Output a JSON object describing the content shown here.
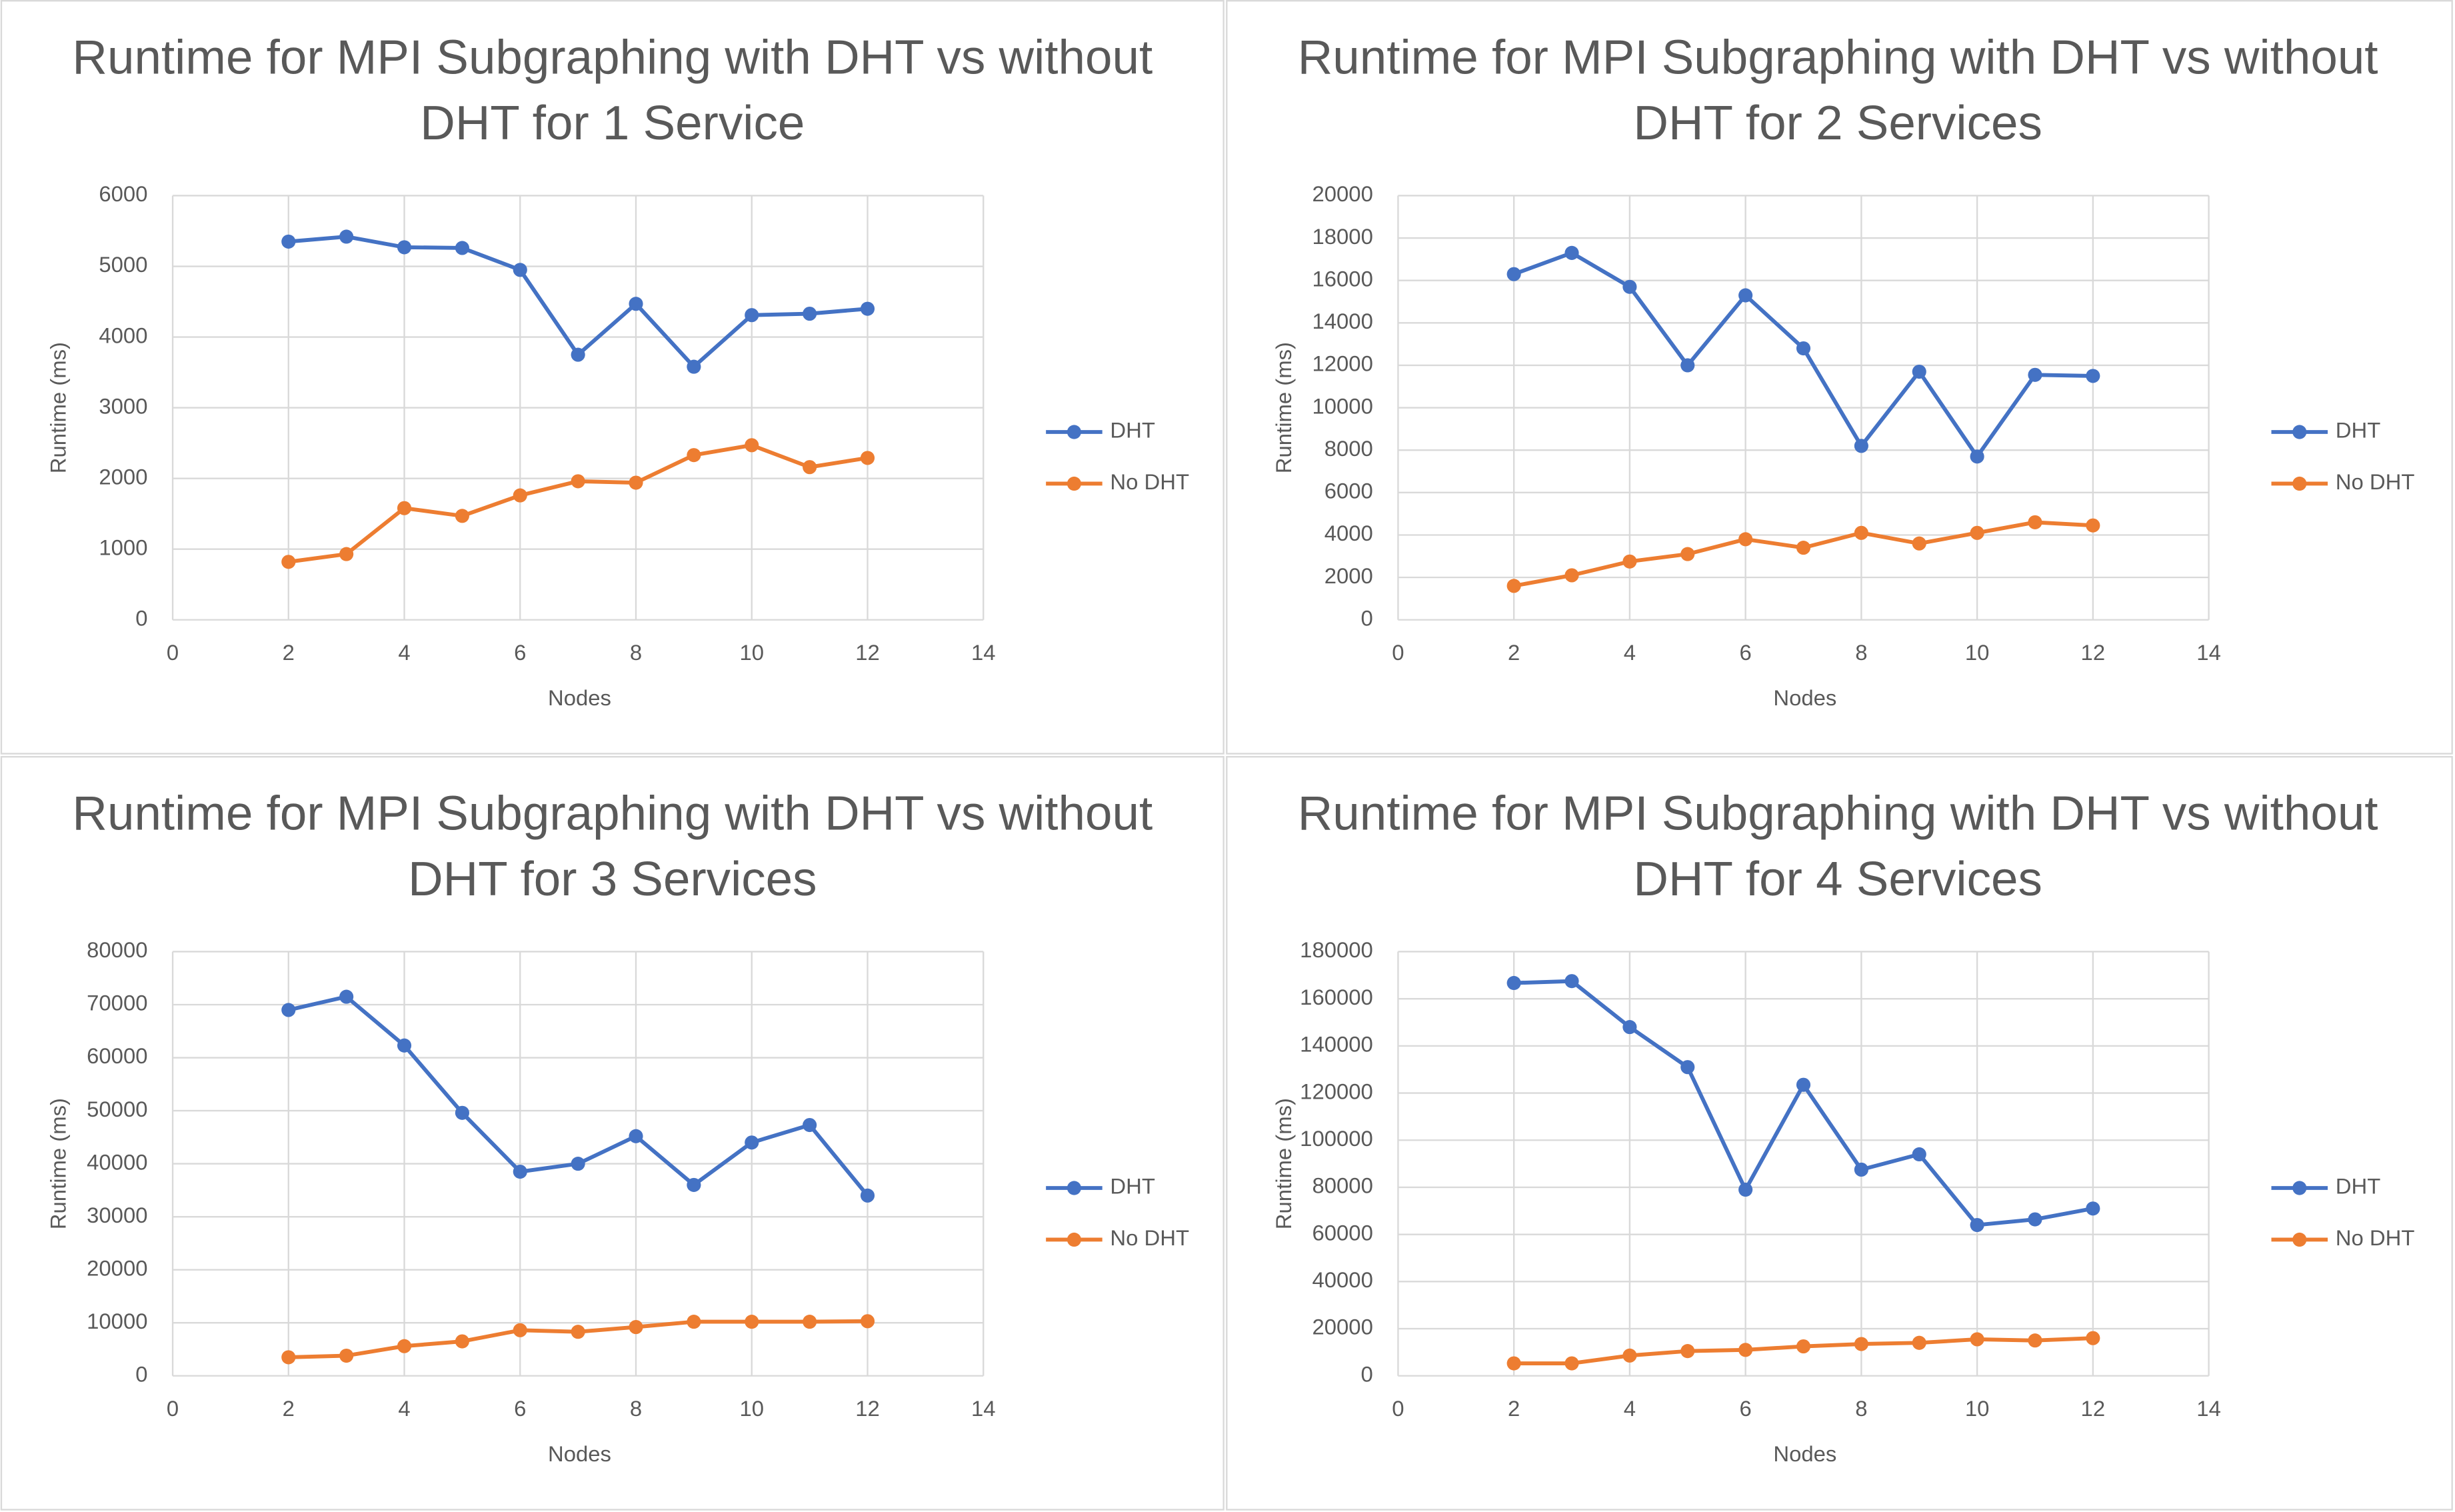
{
  "chart_data": [
    {
      "type": "line",
      "title": "Runtime for MPI Subgraphing with DHT vs without DHT for 1 Service",
      "xlabel": "Nodes",
      "ylabel": "Runtime (ms)",
      "x": [
        2,
        3,
        4,
        5,
        6,
        7,
        8,
        9,
        10,
        11,
        12
      ],
      "xlim": [
        0,
        14
      ],
      "xticks": [
        0,
        2,
        4,
        6,
        8,
        10,
        12,
        14
      ],
      "ylim": [
        0,
        6000
      ],
      "yticks": [
        0,
        1000,
        2000,
        3000,
        4000,
        5000,
        6000
      ],
      "grid": true,
      "legend": "right",
      "series": [
        {
          "name": "DHT",
          "color": "#4472c4",
          "values": [
            5350,
            5420,
            5270,
            5260,
            4950,
            3750,
            4470,
            3580,
            4310,
            4330,
            4400
          ]
        },
        {
          "name": "No DHT",
          "color": "#ed7d31",
          "values": [
            820,
            930,
            1580,
            1470,
            1760,
            1960,
            1940,
            2330,
            2470,
            2160,
            2290
          ]
        }
      ]
    },
    {
      "type": "line",
      "title": "Runtime for MPI Subgraphing with DHT vs without DHT for 2 Services",
      "xlabel": "Nodes",
      "ylabel": "Runtime (ms)",
      "x": [
        2,
        3,
        4,
        5,
        6,
        7,
        8,
        9,
        10,
        11,
        12
      ],
      "xlim": [
        0,
        14
      ],
      "xticks": [
        0,
        2,
        4,
        6,
        8,
        10,
        12,
        14
      ],
      "ylim": [
        0,
        20000
      ],
      "yticks": [
        0,
        2000,
        4000,
        6000,
        8000,
        10000,
        12000,
        14000,
        16000,
        18000,
        20000
      ],
      "grid": true,
      "legend": "right",
      "series": [
        {
          "name": "DHT",
          "color": "#4472c4",
          "values": [
            16300,
            17300,
            15700,
            12000,
            15300,
            12800,
            8200,
            11700,
            7700,
            11550,
            11500
          ]
        },
        {
          "name": "No DHT",
          "color": "#ed7d31",
          "values": [
            1600,
            2100,
            2750,
            3100,
            3800,
            3400,
            4100,
            3600,
            4100,
            4600,
            4450
          ]
        }
      ]
    },
    {
      "type": "line",
      "title": "Runtime for MPI Subgraphing with DHT vs without DHT for 3 Services",
      "xlabel": "Nodes",
      "ylabel": "Runtime (ms)",
      "x": [
        2,
        3,
        4,
        5,
        6,
        7,
        8,
        9,
        10,
        11,
        12
      ],
      "xlim": [
        0,
        14
      ],
      "xticks": [
        0,
        2,
        4,
        6,
        8,
        10,
        12,
        14
      ],
      "ylim": [
        0,
        80000
      ],
      "yticks": [
        0,
        10000,
        20000,
        30000,
        40000,
        50000,
        60000,
        70000,
        80000
      ],
      "grid": true,
      "legend": "right",
      "series": [
        {
          "name": "DHT",
          "color": "#4472c4",
          "values": [
            69000,
            71500,
            62300,
            49600,
            38500,
            40000,
            45200,
            36000,
            44000,
            47300,
            34000
          ]
        },
        {
          "name": "No DHT",
          "color": "#ed7d31",
          "values": [
            3500,
            3800,
            5600,
            6500,
            8600,
            8300,
            9200,
            10200,
            10200,
            10200,
            10300
          ]
        }
      ]
    },
    {
      "type": "line",
      "title": "Runtime for MPI Subgraphing with DHT vs without DHT for 4 Services",
      "xlabel": "Nodes",
      "ylabel": "Runtime (ms)",
      "x": [
        2,
        3,
        4,
        5,
        6,
        7,
        8,
        9,
        10,
        11,
        12
      ],
      "xlim": [
        0,
        14
      ],
      "xticks": [
        0,
        2,
        4,
        6,
        8,
        10,
        12,
        14
      ],
      "ylim": [
        0,
        180000
      ],
      "yticks": [
        0,
        20000,
        40000,
        60000,
        80000,
        100000,
        120000,
        140000,
        160000,
        180000
      ],
      "grid": true,
      "legend": "right",
      "series": [
        {
          "name": "DHT",
          "color": "#4472c4",
          "values": [
            166700,
            167500,
            148000,
            131000,
            79000,
            123500,
            87500,
            94000,
            64000,
            66400,
            71000
          ]
        },
        {
          "name": "No DHT",
          "color": "#ed7d31",
          "values": [
            5300,
            5300,
            8600,
            10500,
            11000,
            12500,
            13500,
            14000,
            15500,
            15000,
            16000
          ]
        }
      ]
    }
  ]
}
